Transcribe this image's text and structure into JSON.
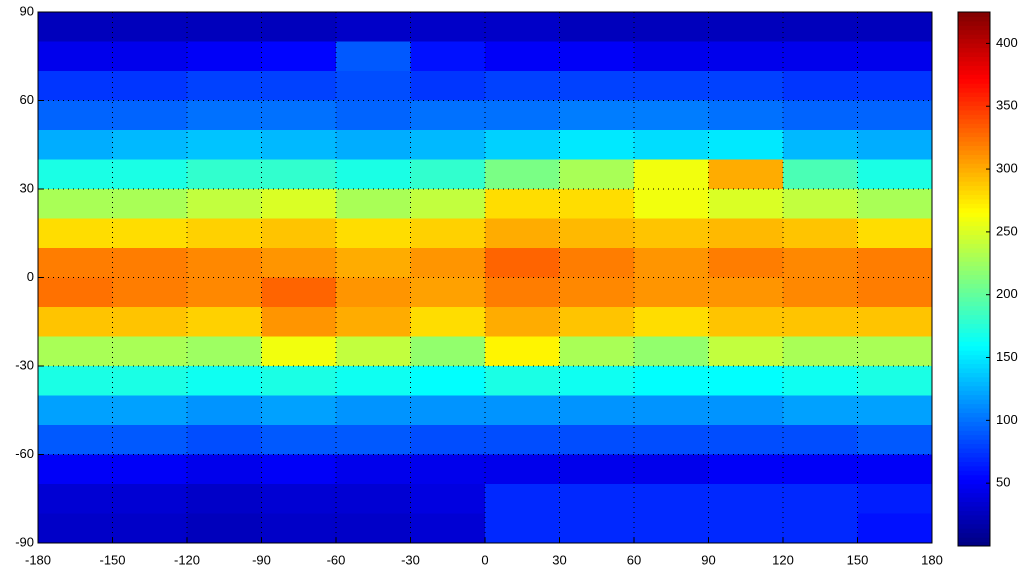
{
  "chart_data": {
    "type": "heatmap",
    "colormap": "jet",
    "grid": true,
    "xlim": [
      -180,
      180
    ],
    "xticks": [
      -180,
      -150,
      -120,
      -90,
      -60,
      -30,
      0,
      30,
      60,
      90,
      120,
      150,
      180
    ],
    "ylim": [
      -90,
      90
    ],
    "yticks": [
      90,
      60,
      30,
      0,
      -30,
      -60,
      -90
    ],
    "clim": [
      0,
      425
    ],
    "cticks": [
      50,
      100,
      150,
      200,
      250,
      300,
      350,
      400
    ],
    "x": [
      -165,
      -135,
      -105,
      -75,
      -45,
      -15,
      15,
      45,
      75,
      105,
      135,
      165
    ],
    "y": [
      85,
      75,
      65,
      55,
      45,
      35,
      25,
      15,
      5,
      -5,
      -15,
      -25,
      -35,
      -45,
      -55,
      -65,
      -75,
      -85
    ],
    "values": [
      [
        25,
        25,
        25,
        25,
        30,
        30,
        30,
        25,
        25,
        25,
        25,
        25
      ],
      [
        45,
        45,
        50,
        55,
        90,
        60,
        50,
        50,
        45,
        45,
        45,
        45
      ],
      [
        75,
        75,
        80,
        80,
        85,
        75,
        80,
        80,
        80,
        80,
        75,
        75
      ],
      [
        95,
        95,
        100,
        100,
        95,
        100,
        100,
        105,
        105,
        100,
        95,
        95
      ],
      [
        125,
        130,
        135,
        130,
        125,
        130,
        140,
        150,
        145,
        150,
        130,
        125
      ],
      [
        170,
        170,
        180,
        180,
        170,
        180,
        210,
        230,
        260,
        300,
        190,
        170
      ],
      [
        230,
        230,
        240,
        250,
        230,
        240,
        280,
        280,
        260,
        250,
        240,
        230
      ],
      [
        280,
        280,
        285,
        290,
        280,
        285,
        300,
        295,
        290,
        295,
        290,
        280
      ],
      [
        320,
        320,
        315,
        310,
        300,
        310,
        330,
        320,
        310,
        320,
        315,
        320
      ],
      [
        325,
        320,
        315,
        330,
        310,
        305,
        320,
        315,
        310,
        310,
        315,
        320
      ],
      [
        290,
        290,
        285,
        310,
        300,
        280,
        300,
        290,
        280,
        290,
        290,
        290
      ],
      [
        230,
        230,
        225,
        260,
        240,
        220,
        270,
        230,
        220,
        240,
        230,
        230
      ],
      [
        170,
        170,
        165,
        170,
        165,
        160,
        170,
        165,
        160,
        160,
        165,
        170
      ],
      [
        120,
        120,
        115,
        120,
        115,
        115,
        115,
        115,
        115,
        115,
        120,
        120
      ],
      [
        90,
        90,
        85,
        90,
        90,
        85,
        85,
        85,
        85,
        85,
        85,
        90
      ],
      [
        50,
        50,
        45,
        50,
        45,
        45,
        45,
        45,
        45,
        50,
        50,
        50
      ],
      [
        35,
        35,
        30,
        35,
        35,
        40,
        70,
        70,
        70,
        70,
        70,
        65
      ],
      [
        30,
        30,
        25,
        30,
        30,
        35,
        70,
        70,
        70,
        70,
        70,
        60
      ]
    ]
  }
}
